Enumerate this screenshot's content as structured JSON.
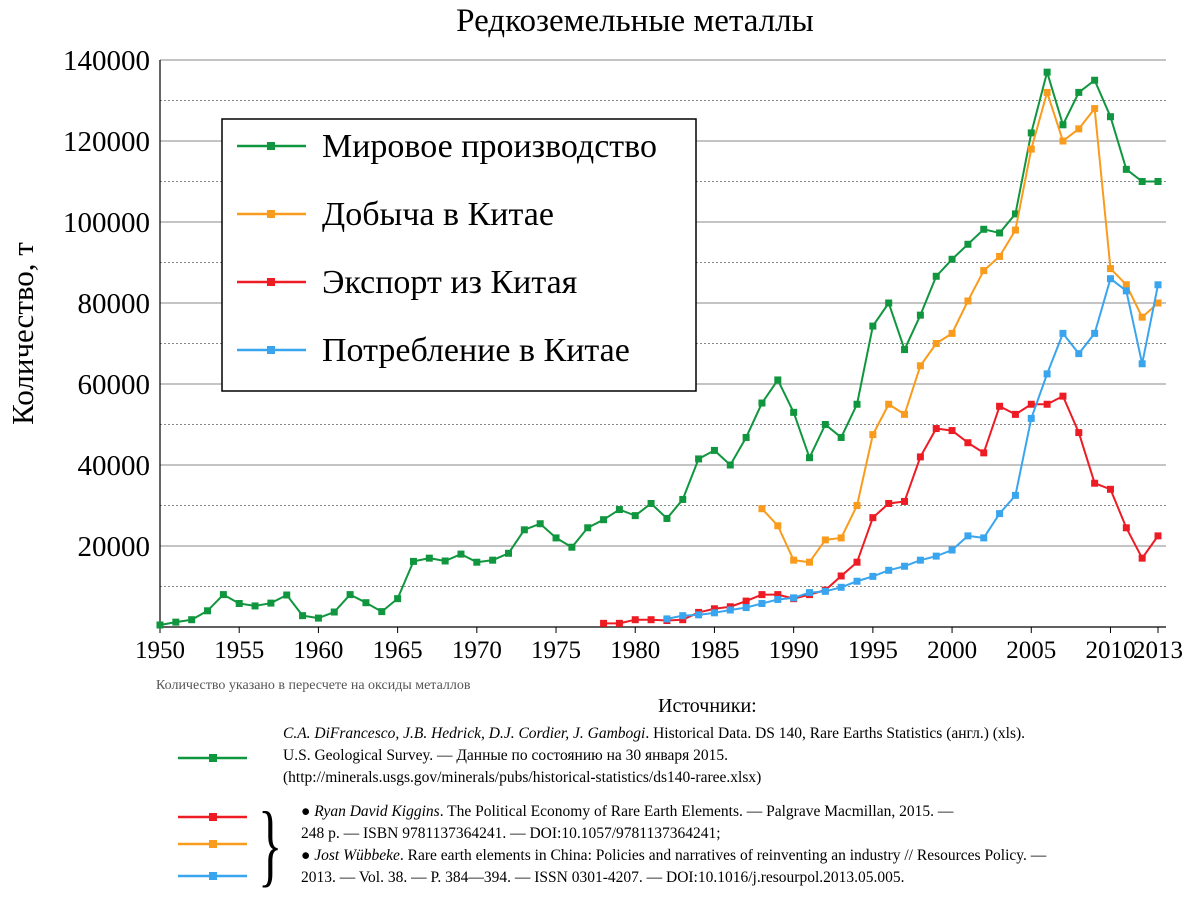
{
  "chart_data": {
    "type": "line",
    "title": "Редкоземельные металлы",
    "ylabel": "Количество, т",
    "xlabel": "",
    "xlim": [
      1950,
      2013
    ],
    "ylim": [
      0,
      140000
    ],
    "xticks": [
      "1950",
      "1955",
      "1960",
      "1965",
      "1970",
      "1975",
      "1980",
      "1985",
      "1990",
      "1995",
      "2000",
      "2005",
      "2010",
      "2013"
    ],
    "yticks": [
      "20000",
      "40000",
      "60000",
      "80000",
      "100000",
      "120000",
      "140000"
    ],
    "grid": "horizontal (solid major, dotted minor)",
    "legend_position": "top-left",
    "series": [
      {
        "name": "Мировое производство",
        "color": "#10963e",
        "x": [
          1950,
          1951,
          1952,
          1953,
          1954,
          1955,
          1956,
          1957,
          1958,
          1959,
          1960,
          1961,
          1962,
          1963,
          1964,
          1965,
          1966,
          1967,
          1968,
          1969,
          1970,
          1971,
          1972,
          1973,
          1974,
          1975,
          1976,
          1977,
          1978,
          1979,
          1980,
          1981,
          1982,
          1983,
          1984,
          1985,
          1986,
          1987,
          1988,
          1989,
          1990,
          1991,
          1992,
          1993,
          1994,
          1995,
          1996,
          1997,
          1998,
          1999,
          2000,
          2001,
          2002,
          2003,
          2004,
          2005,
          2006,
          2007,
          2008,
          2009,
          2010,
          2011,
          2012,
          2013
        ],
        "values": [
          500,
          1200,
          1800,
          4000,
          8000,
          5800,
          5200,
          5900,
          7900,
          2800,
          2200,
          3700,
          8000,
          6000,
          3800,
          7000,
          16200,
          17000,
          16300,
          18000,
          16000,
          16500,
          18200,
          24000,
          25500,
          22000,
          19700,
          24500,
          26500,
          29000,
          27500,
          30500,
          26800,
          31500,
          41500,
          43600,
          40000,
          46800,
          55300,
          61000,
          53000,
          41800,
          50000,
          46800,
          55000,
          74300,
          80000,
          68500,
          77000,
          86600,
          90800,
          94500,
          98200,
          97300,
          102000,
          122000,
          137000,
          124000,
          132000,
          135000,
          126000,
          113000,
          110000,
          110000
        ]
      },
      {
        "name": "Добыча в Китае",
        "color": "#f99b1c",
        "x": [
          1988,
          1989,
          1990,
          1991,
          1992,
          1993,
          1994,
          1995,
          1996,
          1997,
          1998,
          1999,
          2000,
          2001,
          2002,
          2003,
          2004,
          2005,
          2006,
          2007,
          2008,
          2009,
          2010,
          2011,
          2012,
          2013
        ],
        "values": [
          29200,
          25000,
          16500,
          16000,
          21500,
          22000,
          30000,
          47500,
          55000,
          52500,
          64500,
          70000,
          72500,
          80500,
          88000,
          91500,
          98000,
          118000,
          132000,
          120000,
          123000,
          128000,
          88500,
          84500,
          76500,
          80000
        ]
      },
      {
        "name": "Экспорт из Китая",
        "color": "#ed1c24",
        "x": [
          1978,
          1979,
          1980,
          1981,
          1982,
          1983,
          1984,
          1985,
          1986,
          1987,
          1988,
          1989,
          1990,
          1991,
          1992,
          1993,
          1994,
          1995,
          1996,
          1997,
          1998,
          1999,
          2000,
          2001,
          2002,
          2003,
          2004,
          2005,
          2006,
          2007,
          2008,
          2009,
          2010,
          2011,
          2012,
          2013
        ],
        "values": [
          900,
          900,
          1800,
          1800,
          1600,
          1800,
          3600,
          4500,
          5000,
          6400,
          8000,
          8000,
          7000,
          8000,
          9100,
          12600,
          16000,
          27000,
          30500,
          31000,
          42000,
          49000,
          48500,
          45500,
          43000,
          54500,
          52500,
          55000,
          55000,
          57000,
          48000,
          35500,
          34000,
          24500,
          17000,
          22500
        ]
      },
      {
        "name": "Потребление в Китае",
        "color": "#3aa5ef",
        "x": [
          1982,
          1983,
          1984,
          1985,
          1986,
          1987,
          1988,
          1989,
          1990,
          1991,
          1992,
          1993,
          1994,
          1995,
          1996,
          1997,
          1998,
          1999,
          2000,
          2001,
          2002,
          2003,
          2004,
          2005,
          2006,
          2007,
          2008,
          2009,
          2010,
          2011,
          2012,
          2013
        ],
        "values": [
          2000,
          2800,
          3000,
          3500,
          4200,
          4800,
          5800,
          6800,
          7200,
          8500,
          8800,
          9800,
          11300,
          12500,
          14000,
          15000,
          16500,
          17500,
          19000,
          22500,
          22000,
          28000,
          32500,
          51500,
          62500,
          72500,
          67500,
          72500,
          86000,
          83000,
          65000,
          84500
        ]
      }
    ]
  },
  "note": "Количество указано в пересчете на оксиды металлов",
  "sources": {
    "title": "Источники:",
    "s1_authors": "C.A. DiFrancesco, J.B. Hedrick, D.J. Cordier, J. Gambogi",
    "s1_rest": ". Historical Data. DS 140, Rare Earths Statistics (англ.) (xls).",
    "s1_line2": "U.S. Geological Survey. — Данные по состоянию на 30 января 2015.",
    "s1_line3": "(http://minerals.usgs.gov/minerals/pubs/historical-statistics/ds140-raree.xlsx)",
    "s2_bullet": "●",
    "s2_author": "Ryan David Kiggins",
    "s2_rest": ". The Political Economy of Rare Earth Elements. — Palgrave Macmillan, 2015. —",
    "s2_line2": "248 p. — ISBN 9781137364241. — DOI:10.1057/9781137364241;",
    "s3_bullet": "●",
    "s3_author": "Jost Wübbeke",
    "s3_rest": ". Rare earth elements in China: Policies and narratives of reinventing an industry // Resources Policy. —",
    "s3_line2": "2013. — Vol. 38. — P. 384—394. — ISSN 0301-4207. — DOI:10.1016/j.resourpol.2013.05.005."
  }
}
